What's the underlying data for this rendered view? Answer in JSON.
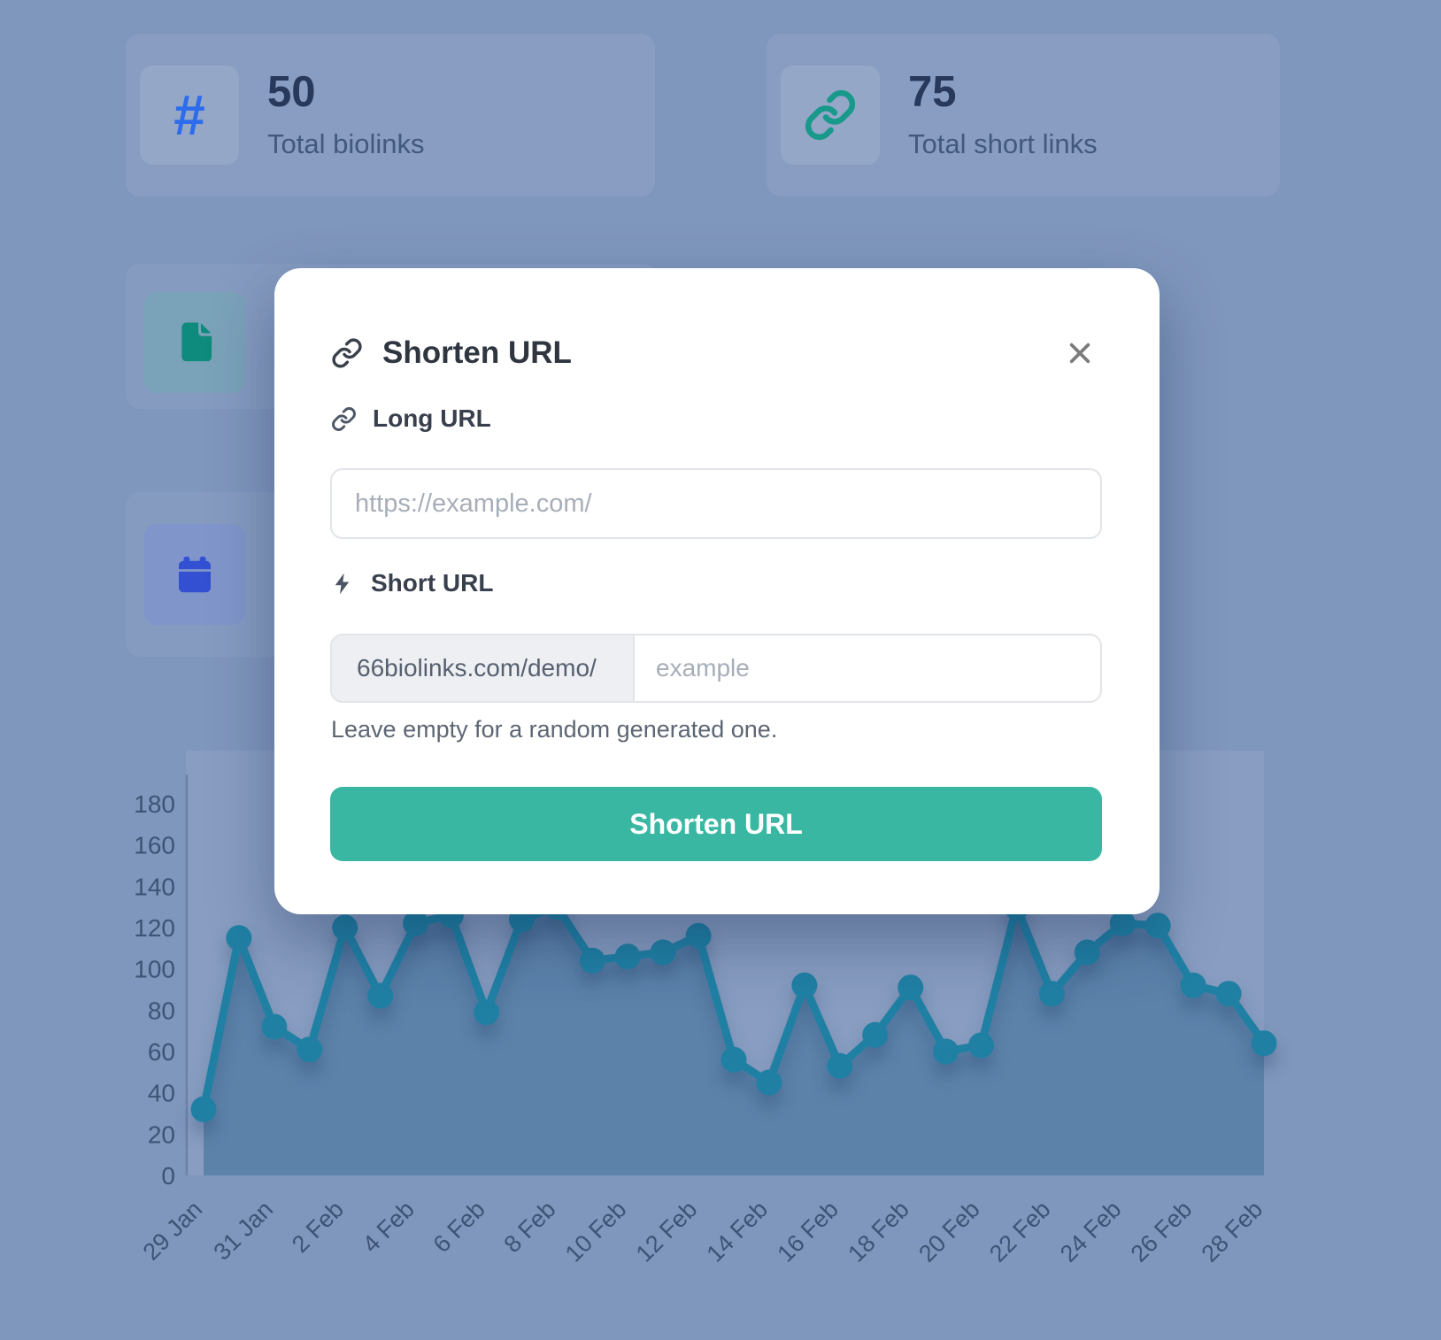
{
  "page": {
    "background_color": "#7f96bd"
  },
  "stats": {
    "biolinks": {
      "value": "50",
      "label": "Total biolinks",
      "icon_glyph": "#",
      "icon_color": "#2d6cec"
    },
    "short_links": {
      "value": "75",
      "label": "Total short links",
      "icon_color": "#18998b"
    }
  },
  "side_cards": {
    "pages": {
      "icon_color": "#0e8b7d"
    },
    "events": {
      "icon_color": "#3350d2"
    }
  },
  "modal": {
    "title": "Shorten URL",
    "accent_color": "#3ab7a3",
    "long_url": {
      "label": "Long URL",
      "placeholder": "https://example.com/"
    },
    "short_url": {
      "label": "Short URL",
      "prefix": "66biolinks.com/demo/",
      "placeholder": "example",
      "help": "Leave empty for a random generated one."
    },
    "submit_label": "Shorten URL"
  },
  "chart_data": {
    "type": "line",
    "title": "",
    "x": [
      "29 Jan",
      "30 Jan",
      "31 Jan",
      "1 Feb",
      "2 Feb",
      "3 Feb",
      "4 Feb",
      "5 Feb",
      "6 Feb",
      "7 Feb",
      "8 Feb",
      "9 Feb",
      "10 Feb",
      "11 Feb",
      "12 Feb",
      "13 Feb",
      "14 Feb",
      "15 Feb",
      "16 Feb",
      "17 Feb",
      "18 Feb",
      "19 Feb",
      "20 Feb",
      "21 Feb",
      "22 Feb",
      "23 Feb",
      "24 Feb",
      "25 Feb",
      "26 Feb",
      "27 Feb",
      "28 Feb"
    ],
    "values": [
      32,
      115,
      72,
      61,
      120,
      87,
      122,
      126,
      79,
      124,
      130,
      104,
      106,
      108,
      116,
      56,
      45,
      92,
      53,
      68,
      91,
      60,
      63,
      130,
      88,
      108,
      122,
      121,
      92,
      88,
      64
    ],
    "x_tick_labels": [
      "29 Jan",
      "31 Jan",
      "2 Feb",
      "4 Feb",
      "6 Feb",
      "8 Feb",
      "10 Feb",
      "12 Feb",
      "14 Feb",
      "16 Feb",
      "18 Feb",
      "20 Feb",
      "22 Feb",
      "24 Feb",
      "26 Feb",
      "28 Feb"
    ],
    "ylim": [
      0,
      180
    ],
    "yticks": [
      0,
      20,
      40,
      60,
      80,
      100,
      120,
      140,
      160,
      180
    ],
    "grid": false,
    "legend": false,
    "line_color": "#2080a4",
    "area_color": "rgba(32,92,138,0.42)",
    "plot_bg": "rgba(255,255,255,0.075)",
    "axis_color": "rgba(40,60,100,0.28)",
    "tick_label_color": "#3d5476"
  }
}
